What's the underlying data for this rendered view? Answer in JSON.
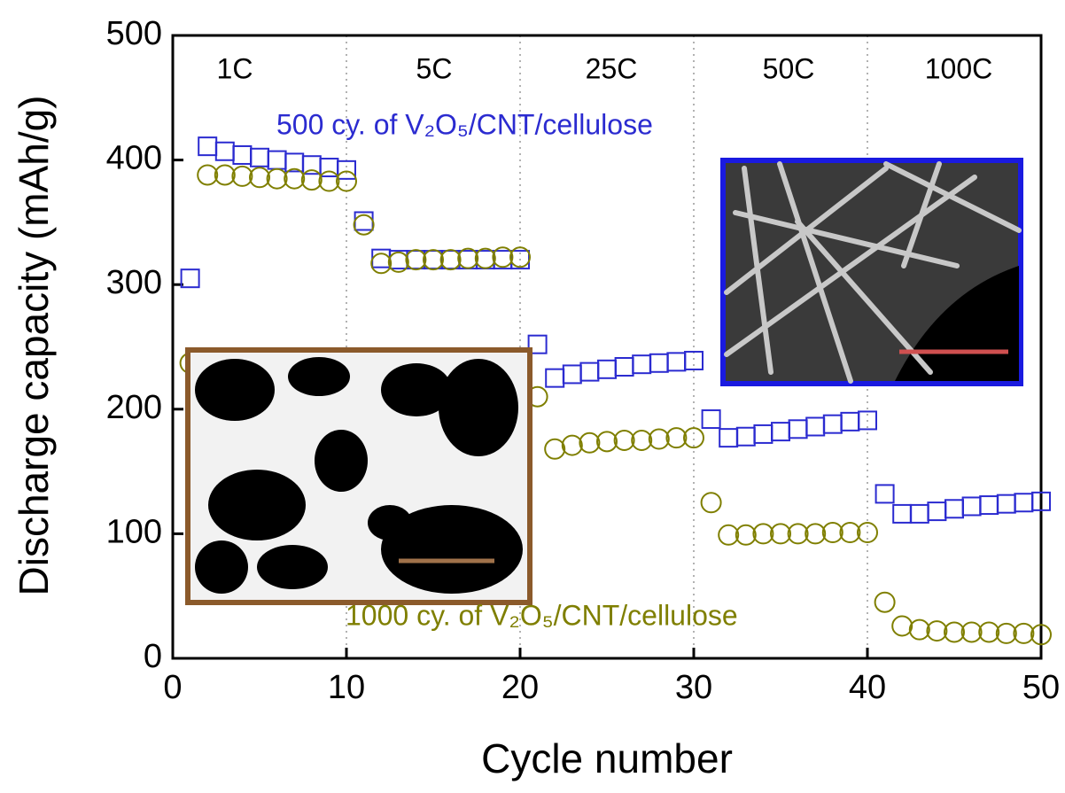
{
  "chart_data": {
    "type": "scatter",
    "x_label": "Cycle number",
    "y_label": "Discharge capacity (mAh/g)",
    "annotations": [
      "1C",
      "5C",
      "25C",
      "50C",
      "100C"
    ],
    "x": [
      1,
      2,
      3,
      4,
      5,
      6,
      7,
      8,
      9,
      10,
      11,
      12,
      13,
      14,
      15,
      16,
      17,
      18,
      19,
      20,
      21,
      22,
      23,
      24,
      25,
      26,
      27,
      28,
      29,
      30,
      31,
      32,
      33,
      34,
      35,
      36,
      37,
      38,
      39,
      40,
      41,
      42,
      43,
      44,
      45,
      46,
      47,
      48,
      49,
      50
    ],
    "series": [
      {
        "name": "500 cy. of V₂O₅/CNT/cellulose",
        "color": "#2b2bd0",
        "marker": "square",
        "values": [
          305,
          411,
          407,
          404,
          402,
          400,
          398,
          396,
          394,
          392,
          351,
          321,
          320,
          320,
          320,
          320,
          320,
          320,
          320,
          320,
          252,
          225,
          228,
          230,
          232,
          234,
          236,
          237,
          238,
          239,
          192,
          177,
          178,
          180,
          182,
          184,
          186,
          188,
          190,
          191,
          132,
          116,
          116,
          118,
          120,
          122,
          123,
          124,
          125,
          126
        ]
      },
      {
        "name": "1000 cy. of V₂O₅/CNT/cellulose",
        "color": "#7f7f00",
        "marker": "circle",
        "values": [
          237,
          388,
          388,
          387,
          386,
          385,
          385,
          384,
          383,
          383,
          348,
          317,
          318,
          320,
          320,
          320,
          321,
          321,
          322,
          322,
          210,
          168,
          171,
          173,
          174,
          175,
          175,
          176,
          177,
          177,
          125,
          99,
          99,
          100,
          100,
          100,
          100,
          101,
          101,
          101,
          45,
          26,
          23,
          22,
          21,
          21,
          21,
          20,
          20,
          19
        ]
      }
    ],
    "xlim": [
      0,
      50
    ],
    "xticks": [
      0,
      10,
      20,
      30,
      40,
      50
    ],
    "ylim": [
      0,
      500
    ],
    "yticks": [
      0,
      100,
      200,
      300,
      400,
      500
    ]
  }
}
